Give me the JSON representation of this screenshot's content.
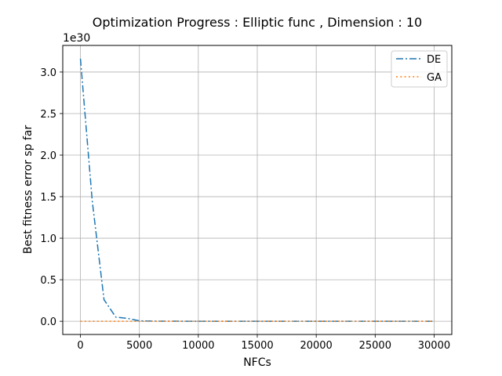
{
  "chart_data": {
    "type": "line",
    "title": "Optimization Progress : Elliptic func , Dimension : 10",
    "xlabel": "NFCs",
    "ylabel": "Best fitness error sp far",
    "y_scale_label": "1e30",
    "y_scale_factor": 1e+30,
    "xlim": [
      -1500,
      31500
    ],
    "ylim": [
      -0.159,
      3.32
    ],
    "xticks": [
      0,
      5000,
      10000,
      15000,
      20000,
      25000,
      30000
    ],
    "xtick_labels": [
      "0",
      "5000",
      "10000",
      "15000",
      "20000",
      "25000",
      "30000"
    ],
    "yticks": [
      0.0,
      0.5,
      1.0,
      1.5,
      2.0,
      2.5,
      3.0
    ],
    "ytick_labels": [
      "0.0",
      "0.5",
      "1.0",
      "1.5",
      "2.0",
      "2.5",
      "3.0"
    ],
    "grid": true,
    "legend_position": "top-right",
    "series": [
      {
        "name": "DE",
        "color": "#1f77b4",
        "style": "dashdot",
        "x": [
          0,
          1000,
          2000,
          3000,
          4000,
          5000,
          6000,
          8000,
          10000,
          12000,
          14000,
          16000,
          18000,
          20000,
          22000,
          24000,
          26000,
          28000,
          30000
        ],
        "y": [
          3.16,
          1.45,
          0.26,
          0.05,
          0.035,
          0.005,
          0.002,
          0.001,
          0,
          0,
          0,
          0,
          0,
          0,
          0,
          0,
          0,
          0,
          0
        ]
      },
      {
        "name": "GA",
        "color": "#ff7f0e",
        "style": "dotted",
        "x": [
          0,
          30000
        ],
        "y": [
          0,
          0
        ]
      }
    ]
  }
}
